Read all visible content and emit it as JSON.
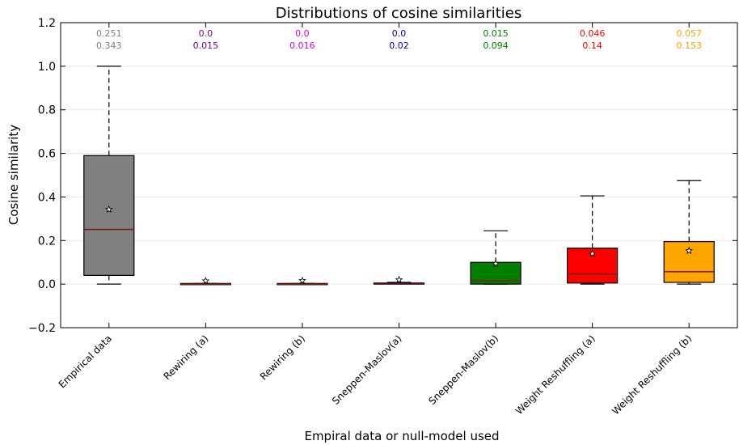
{
  "chart_data": {
    "type": "box",
    "title": "Distributions of cosine similarities",
    "xlabel": "Empiral data or null-model used",
    "ylabel": "Cosine similarity",
    "ylim": [
      -0.2,
      1.2
    ],
    "yticks": [
      -0.2,
      0.0,
      0.2,
      0.4,
      0.6,
      0.8,
      1.0,
      1.2
    ],
    "ytick_labels": [
      "−0.2",
      "0.0",
      "0.2",
      "0.4",
      "0.6",
      "0.8",
      "1.0",
      "1.2"
    ],
    "grid": "horizontal",
    "mean_marker": "star",
    "categories": [
      {
        "label": "Empirical data",
        "color": "#808080",
        "annot_color": "#808080",
        "median_annot": "0.251",
        "mean_annot": "0.343",
        "whisker_low": 0.0,
        "q1": 0.04,
        "median": 0.251,
        "q3": 0.59,
        "whisker_high": 1.0,
        "mean": 0.343
      },
      {
        "label": "Rewiring (a)",
        "color": "#800080",
        "annot_color": "#800080",
        "median_annot": "0.0",
        "mean_annot": "0.015",
        "whisker_low": 0.0,
        "q1": 0.0,
        "median": 0.0,
        "q3": 0.003,
        "whisker_high": 0.003,
        "mean": 0.015
      },
      {
        "label": "Rewiring (b)",
        "color": "#ff00ff",
        "annot_color": "#e000e0",
        "median_annot": "0.0",
        "mean_annot": "0.016",
        "whisker_low": 0.0,
        "q1": 0.0,
        "median": 0.0,
        "q3": 0.003,
        "whisker_high": 0.003,
        "mean": 0.016
      },
      {
        "label": "Sneppen-Maslov(a)",
        "color": "#0000cc",
        "annot_color": "#0000cc",
        "median_annot": "0.0",
        "mean_annot": "0.02",
        "whisker_low": 0.0,
        "q1": 0.0,
        "median": 0.0,
        "q3": 0.005,
        "whisker_high": 0.008,
        "mean": 0.02
      },
      {
        "label": "Sneppen-Maslov(b)",
        "color": "#007f00",
        "annot_color": "#007f00",
        "median_annot": "0.015",
        "mean_annot": "0.094",
        "whisker_low": 0.0,
        "q1": 0.0,
        "median": 0.015,
        "q3": 0.1,
        "whisker_high": 0.245,
        "mean": 0.094
      },
      {
        "label": "Weight Reshuffling (a)",
        "color": "#ff0000",
        "annot_color": "#ff0000",
        "median_annot": "0.046",
        "mean_annot": "0.14",
        "whisker_low": 0.0,
        "q1": 0.005,
        "median": 0.046,
        "q3": 0.165,
        "whisker_high": 0.405,
        "mean": 0.14
      },
      {
        "label": "Weight Reshuffling (b)",
        "color": "#ffa500",
        "annot_color": "#ffa500",
        "median_annot": "0.057",
        "mean_annot": "0.153",
        "whisker_low": 0.0,
        "q1": 0.008,
        "median": 0.057,
        "q3": 0.195,
        "whisker_high": 0.475,
        "mean": 0.153
      }
    ]
  }
}
